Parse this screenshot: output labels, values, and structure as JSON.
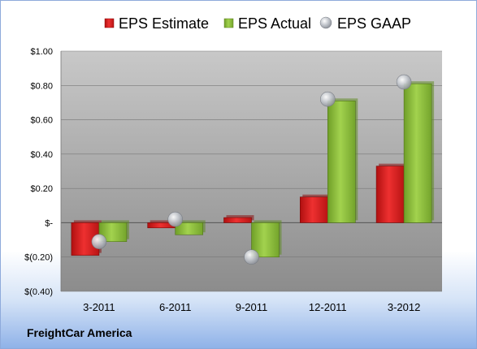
{
  "company": "FreightCar America",
  "colors": {
    "estimate": "#e02020",
    "actual": "#8ec03c",
    "gaap": "#b8bcc4",
    "plot_top": "#c8c8c8",
    "plot_bottom": "#8c8c8c"
  },
  "chart_data": {
    "type": "bar",
    "categories": [
      "3-2011",
      "6-2011",
      "9-2011",
      "12-2011",
      "3-2012"
    ],
    "series": [
      {
        "name": "EPS Estimate",
        "type": "bar",
        "values": [
          -0.19,
          -0.03,
          0.03,
          0.15,
          0.33
        ]
      },
      {
        "name": "EPS Actual",
        "type": "bar",
        "values": [
          -0.11,
          -0.07,
          -0.2,
          0.71,
          0.81
        ]
      },
      {
        "name": "EPS GAAP",
        "type": "scatter",
        "values": [
          -0.11,
          0.02,
          -0.2,
          0.72,
          0.82
        ]
      }
    ],
    "ylim": [
      -0.4,
      1.0
    ],
    "yticks": [
      1.0,
      0.8,
      0.6,
      0.4,
      0.2,
      0,
      -0.2,
      -0.4
    ],
    "ytick_labels": [
      "$1.00",
      "$0.80",
      "$0.60",
      "$0.40",
      "$0.20",
      "$-",
      "$(0.20)",
      "$(0.40)"
    ],
    "legend_position": "top",
    "grid": true
  }
}
